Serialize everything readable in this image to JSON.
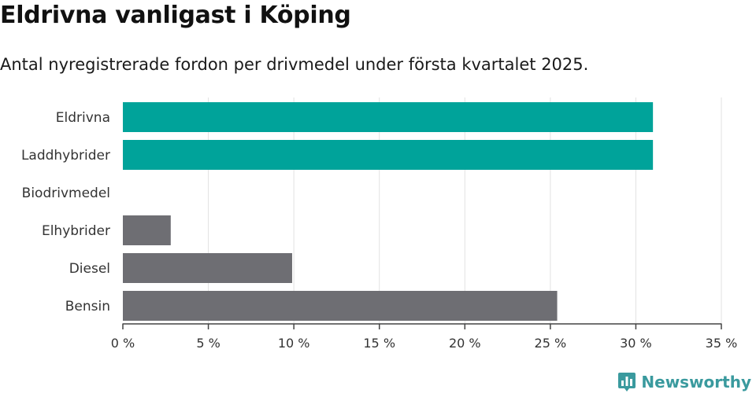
{
  "title": "Eldrivna vanligast i Köping",
  "subtitle": "Antal nyregistrerade fordon per drivmedel under första kvartalet 2025.",
  "brand": {
    "name": "Newsworthy",
    "icon": "newsworthy-logo-icon",
    "color": "#3a9a9e"
  },
  "chart_data": {
    "type": "bar",
    "orientation": "horizontal",
    "categories": [
      "Eldrivna",
      "Laddhybrider",
      "Biodrivmedel",
      "Elhybrider",
      "Diesel",
      "Bensin"
    ],
    "values": [
      31,
      31,
      0,
      2.8,
      9.9,
      25.4
    ],
    "colors": [
      "#00a39a",
      "#00a39a",
      "#6e6e73",
      "#6e6e73",
      "#6e6e73",
      "#6e6e73"
    ],
    "xlim": [
      0,
      35
    ],
    "xticks": [
      0,
      5,
      10,
      15,
      20,
      25,
      30,
      35
    ],
    "xtick_labels": [
      "0 %",
      "5 %",
      "10 %",
      "15 %",
      "20 %",
      "25 %",
      "30 %",
      "35 %"
    ],
    "unit": "%",
    "grid": true,
    "xlabel": "",
    "ylabel": ""
  }
}
